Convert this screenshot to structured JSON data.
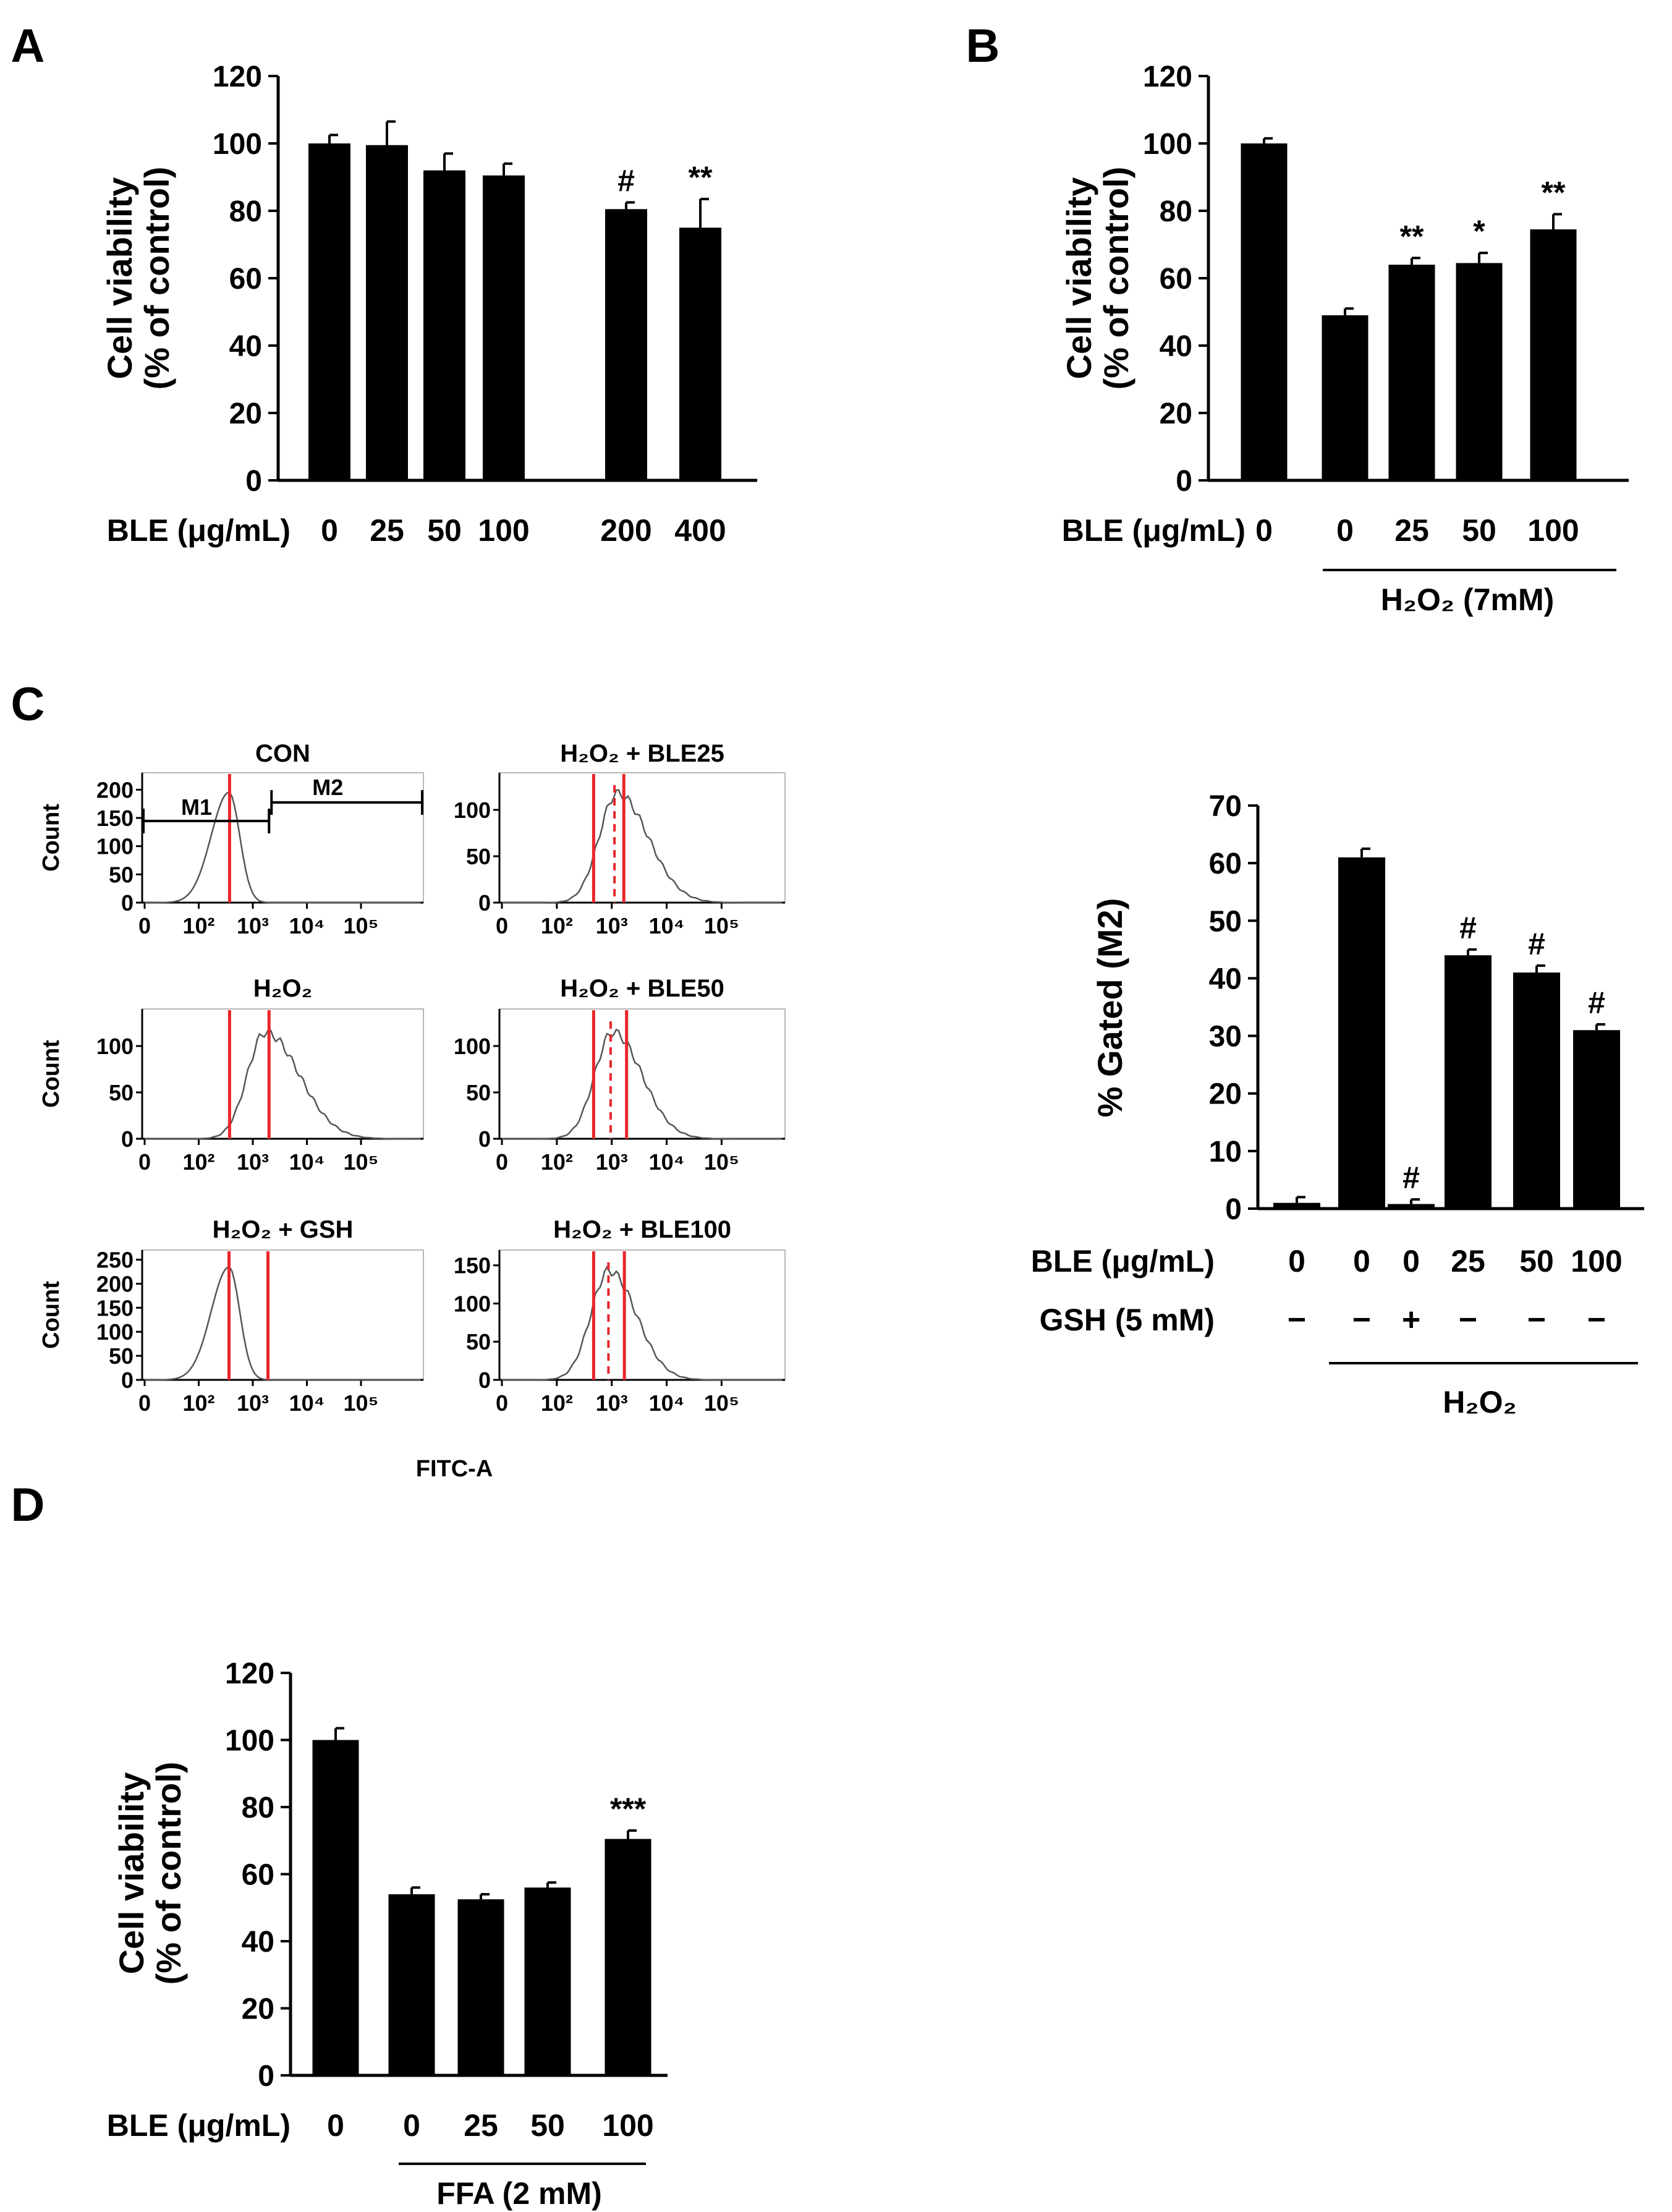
{
  "panel_labels": [
    "A",
    "B",
    "C",
    "D"
  ],
  "colors": {
    "bar": "#000000",
    "axis": "#000000",
    "gate": "#e8262b",
    "trace": "#555555",
    "background": "#ffffff"
  },
  "chart_data": [
    {
      "id": "A",
      "type": "bar",
      "title": "",
      "ylabel": [
        "Cell viability",
        "(% of control)"
      ],
      "ylim": [
        0,
        120
      ],
      "yticks": [
        "0",
        "20",
        "40",
        "60",
        "80",
        "100",
        "120"
      ],
      "row_label": "BLE (μg/mL)",
      "categories": [
        "0",
        "25",
        "50",
        "100",
        "200",
        "400"
      ],
      "values": [
        100,
        99.5,
        92,
        90.5,
        80.5,
        75
      ],
      "errors": [
        2.5,
        7,
        5,
        3.5,
        2,
        8.5
      ],
      "annotations": [
        "",
        "",
        "",
        "",
        "#",
        "**"
      ],
      "grid": false
    },
    {
      "id": "B",
      "type": "bar",
      "title": "",
      "ylabel": [
        "Cell viability",
        "(% of control)"
      ],
      "ylim": [
        0,
        120
      ],
      "yticks": [
        "0",
        "20",
        "40",
        "60",
        "80",
        "100",
        "120"
      ],
      "row_label": "BLE (μg/mL)",
      "categories": [
        "0",
        "0",
        "25",
        "50",
        "100"
      ],
      "values": [
        100,
        49,
        64,
        64.5,
        74.5
      ],
      "errors": [
        1.5,
        2,
        2,
        3,
        4.5
      ],
      "annotations": [
        "",
        "",
        "**",
        "*",
        "**"
      ],
      "group_label": "H₂O₂ (7mM)",
      "grid": false
    },
    {
      "id": "C-bar",
      "type": "bar",
      "title": "",
      "ylabel": [
        "% Gated (M2)"
      ],
      "ylim": [
        0,
        70
      ],
      "yticks": [
        "0",
        "10",
        "20",
        "30",
        "40",
        "50",
        "60",
        "70"
      ],
      "row_label": "BLE (μg/mL)",
      "categories": [
        "0",
        "0",
        "0",
        "25",
        "50",
        "100"
      ],
      "second_row_label": "GSH (5 mM)",
      "second_row": [
        "−",
        "−",
        "+",
        "−",
        "−",
        "−"
      ],
      "values": [
        1,
        61,
        0.8,
        44,
        41,
        31
      ],
      "errors": [
        1,
        1.5,
        0.8,
        1,
        1.2,
        1
      ],
      "annotations": [
        "",
        "",
        "#",
        "#",
        "#",
        "#"
      ],
      "group_label": "H₂O₂",
      "grid": false
    },
    {
      "id": "D",
      "type": "bar",
      "title": "",
      "ylabel": [
        "Cell viability",
        "(% of control)"
      ],
      "ylim": [
        0,
        120
      ],
      "yticks": [
        "0",
        "20",
        "40",
        "60",
        "80",
        "100",
        "120"
      ],
      "row_label": "BLE (μg/mL)",
      "categories": [
        "0",
        "0",
        "25",
        "50",
        "100"
      ],
      "values": [
        100,
        54,
        52.5,
        56,
        70.5
      ],
      "errors": [
        3.5,
        2,
        1.5,
        1.5,
        2.5
      ],
      "annotations": [
        "",
        "",
        "",
        "",
        "***"
      ],
      "group_label": "FFA (2 mM)",
      "grid": false
    }
  ],
  "histograms": {
    "xlabel": "FITC-A",
    "ylabel": "Count",
    "xticks": [
      "0",
      "10²",
      "10³",
      "10⁴",
      "10⁵"
    ],
    "gate_labels": [
      "M1",
      "M2"
    ],
    "plots": [
      {
        "title": "CON",
        "yticks": [
          "0",
          "50",
          "100",
          "150",
          "200"
        ],
        "ymax": 230,
        "peak_pos": 0.56,
        "peak_height": 0.85,
        "skew": 0.6,
        "gates": [
          0.57
        ],
        "dashed": [],
        "has_gate_bars": true
      },
      {
        "title": "H₂O₂ + BLE25",
        "yticks": [
          "0",
          "50",
          "100"
        ],
        "ymax": 140,
        "peak_pos": 1.1,
        "peak_height": 0.84,
        "skew": 1.7,
        "gates": [
          0.67,
          1.22
        ],
        "dashed": [
          1.05
        ],
        "has_gate_bars": false
      },
      {
        "title": "H₂O₂",
        "yticks": [
          "0",
          "50",
          "100"
        ],
        "ymax": 140,
        "peak_pos": 1.23,
        "peak_height": 0.82,
        "skew": 1.9,
        "gates": [
          0.57,
          1.3
        ],
        "dashed": [],
        "has_gate_bars": false
      },
      {
        "title": "H₂O₂ + BLE50",
        "yticks": [
          "0",
          "50",
          "100"
        ],
        "ymax": 140,
        "peak_pos": 1.02,
        "peak_height": 0.82,
        "skew": 1.6,
        "gates": [
          0.67,
          1.27
        ],
        "dashed": [
          0.98
        ],
        "has_gate_bars": false
      },
      {
        "title": "H₂O₂ + GSH",
        "yticks": [
          "0",
          "50",
          "100",
          "150",
          "200",
          "250"
        ],
        "ymax": 270,
        "peak_pos": 0.56,
        "peak_height": 0.87,
        "skew": 0.6,
        "gates": [
          0.56,
          1.28
        ],
        "dashed": [],
        "has_gate_bars": false
      },
      {
        "title": "H₂O₂ + BLE100",
        "yticks": [
          "0",
          "50",
          "100",
          "150"
        ],
        "ymax": 170,
        "peak_pos": 0.95,
        "peak_height": 0.84,
        "skew": 1.5,
        "gates": [
          0.67,
          1.23
        ],
        "dashed": [
          0.94
        ],
        "has_gate_bars": false
      }
    ]
  }
}
